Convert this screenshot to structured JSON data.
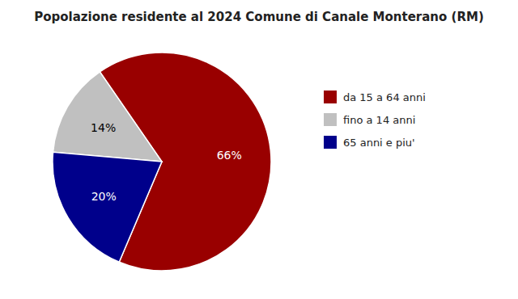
{
  "chart_data": {
    "type": "pie",
    "title": "Popolazione residente al 2024 Comune di Canale Monterano (RM)",
    "categories": [
      "da 15 a 64 anni",
      "fino a 14 anni",
      "65 anni e piu'"
    ],
    "values": [
      66,
      14,
      20
    ],
    "value_labels": [
      "66%",
      "14%",
      "20%"
    ],
    "colors": [
      "#990000",
      "#C0C0C0",
      "#00008B"
    ],
    "data_labels": true,
    "legend": "right"
  }
}
